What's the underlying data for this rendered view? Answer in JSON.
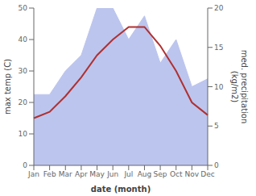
{
  "chart_data": {
    "type": "line",
    "categories": [
      "Jan",
      "Feb",
      "Mar",
      "Apr",
      "May",
      "Jun",
      "Jul",
      "Aug",
      "Sep",
      "Oct",
      "Nov",
      "Dec"
    ],
    "x_label": "date (month)",
    "y_label": "max temp (C)",
    "y2_label": "med. precipitation\n(kg/m2)",
    "series": [
      {
        "type": "area",
        "axis": "y2",
        "color": "#bcc5ee",
        "values": [
          9,
          9,
          12,
          14,
          20,
          20,
          16,
          19,
          13,
          16,
          10,
          11
        ]
      },
      {
        "type": "line",
        "color": "#b03030",
        "values": [
          15,
          17,
          22,
          28,
          35,
          40,
          44,
          44,
          38,
          30,
          20,
          16
        ]
      }
    ],
    "ylim": [
      0,
      50
    ],
    "yticks": [
      0,
      10,
      20,
      30,
      40,
      50
    ],
    "y2lim": [
      0,
      20
    ],
    "y2ticks": [
      0,
      5,
      10,
      15,
      20
    ],
    "grid": false
  }
}
